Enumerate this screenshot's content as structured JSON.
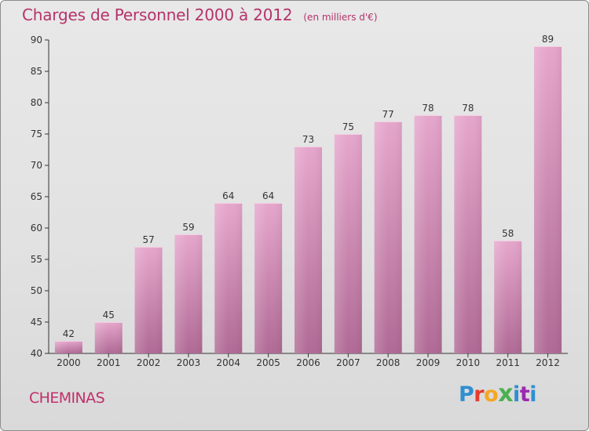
{
  "header": {
    "title": "Charges de Personnel 2000 à 2012",
    "subtitle": "(en milliers d'€)"
  },
  "footer": {
    "commune": "CHEMINAS",
    "logo_letters": [
      "P",
      "r",
      "o",
      "x",
      "i",
      "t",
      "i"
    ]
  },
  "colors": {
    "bar_top": "#e6a6cc",
    "bar_bottom": "#b06a95",
    "title": "#b5336a",
    "axis": "#333333"
  },
  "chart_data": {
    "type": "bar",
    "title": "Charges de Personnel 2000 à 2012",
    "subtitle": "(en milliers d'€)",
    "categories": [
      "2000",
      "2001",
      "2002",
      "2003",
      "2004",
      "2005",
      "2006",
      "2007",
      "2008",
      "2009",
      "2010",
      "2011",
      "2012"
    ],
    "values": [
      42,
      45,
      57,
      59,
      64,
      64,
      73,
      75,
      77,
      78,
      78,
      58,
      89
    ],
    "ylim": [
      40,
      90
    ],
    "yticks": [
      40,
      45,
      50,
      55,
      60,
      65,
      70,
      75,
      80,
      85,
      90
    ],
    "grid": false,
    "data_labels": true,
    "legend": "none"
  }
}
